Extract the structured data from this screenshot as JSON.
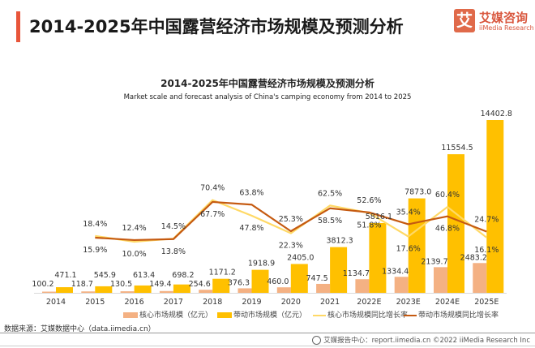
{
  "header": {
    "title": "2014-2025年中国露营经济市场规模及预测分析",
    "logo_mark": "艾",
    "logo_cn": "艾媒咨询",
    "logo_en": "iiMedia Research"
  },
  "chart_data": {
    "type": "bar",
    "title": "2014-2025年中国露营经济市场规模及预测分析",
    "subtitle": "Market scale and forecast analysis of China's camping economy from 2014 to 2025",
    "categories": [
      "2014",
      "2015",
      "2016",
      "2017",
      "2018",
      "2019",
      "2020",
      "2021",
      "2022E",
      "2023E",
      "2024E",
      "2025E"
    ],
    "series": [
      {
        "name": "核心市场规模（亿元）",
        "kind": "bar",
        "color": "#f4b183",
        "values": [
          100.2,
          118.7,
          130.5,
          149.4,
          254.6,
          376.3,
          460.0,
          747.5,
          1134.7,
          1334.4,
          2139.7,
          2483.2
        ]
      },
      {
        "name": "带动市场规模（亿元）",
        "kind": "bar",
        "color": "#ffc000",
        "values": [
          471.1,
          545.9,
          613.4,
          698.2,
          1171.2,
          1918.9,
          2405.0,
          3812.3,
          5816.1,
          7873.0,
          11554.5,
          14402.8
        ]
      },
      {
        "name": "核心市场规模同比增长率",
        "kind": "line",
        "color": "#ffd966",
        "unit": "%",
        "values": [
          null,
          18.4,
          10.0,
          14.5,
          70.4,
          47.8,
          22.3,
          62.5,
          51.8,
          17.6,
          60.4,
          16.1
        ]
      },
      {
        "name": "带动市场规模同比增长率",
        "kind": "line",
        "color": "#c55a11",
        "unit": "%",
        "values": [
          null,
          15.9,
          12.4,
          13.8,
          67.7,
          63.8,
          25.3,
          58.5,
          52.6,
          35.4,
          46.8,
          24.7
        ]
      }
    ],
    "value_labels": {
      "bars_core": [
        "100.2",
        "118.7",
        "130.5",
        "149.4",
        "254.6",
        "376.3",
        "460.0",
        "747.5",
        "1134.7",
        "1334.4",
        "2139.7",
        "2483.2"
      ],
      "bars_driven": [
        "471.1",
        "545.9",
        "613.4",
        "698.2",
        "1171.2",
        "1918.9",
        "2405.0",
        "3812.3",
        "5816.1",
        "7873.0",
        "11554.5",
        "14402.8"
      ],
      "rate_core": [
        "",
        "18.4%",
        "10.0%",
        "14.5%",
        "70.4%",
        "47.8%",
        "22.3%",
        "62.5%",
        "51.8%",
        "17.6%",
        "60.4%",
        "16.1%"
      ],
      "rate_driven": [
        "",
        "15.9%",
        "12.4%",
        "13.8%",
        "67.7%",
        "63.8%",
        "25.3%",
        "58.5%",
        "52.6%",
        "35.4%",
        "46.8%",
        "24.7%"
      ]
    },
    "xlabel": "",
    "ylabel": "",
    "ylim": [
      0,
      15000
    ],
    "y2lim": [
      0,
      80
    ],
    "grid": false,
    "legend": "bottom"
  },
  "legend": [
    {
      "label": "核心市场规模（亿元）",
      "color": "#f4b183",
      "shape": "rect"
    },
    {
      "label": "带动市场规模（亿元）",
      "color": "#ffc000",
      "shape": "rect"
    },
    {
      "label": "核心市场规模同比增长率",
      "color": "#ffd966",
      "shape": "line"
    },
    {
      "label": "带动市场规模同比增长率",
      "color": "#c55a11",
      "shape": "line"
    }
  ],
  "source": "数据来源：艾媒数据中心（data.iimedia.cn）",
  "footer": "艾媒报告中心：report.iimedia.cn  ©2022  iiMedia Research  Inc"
}
